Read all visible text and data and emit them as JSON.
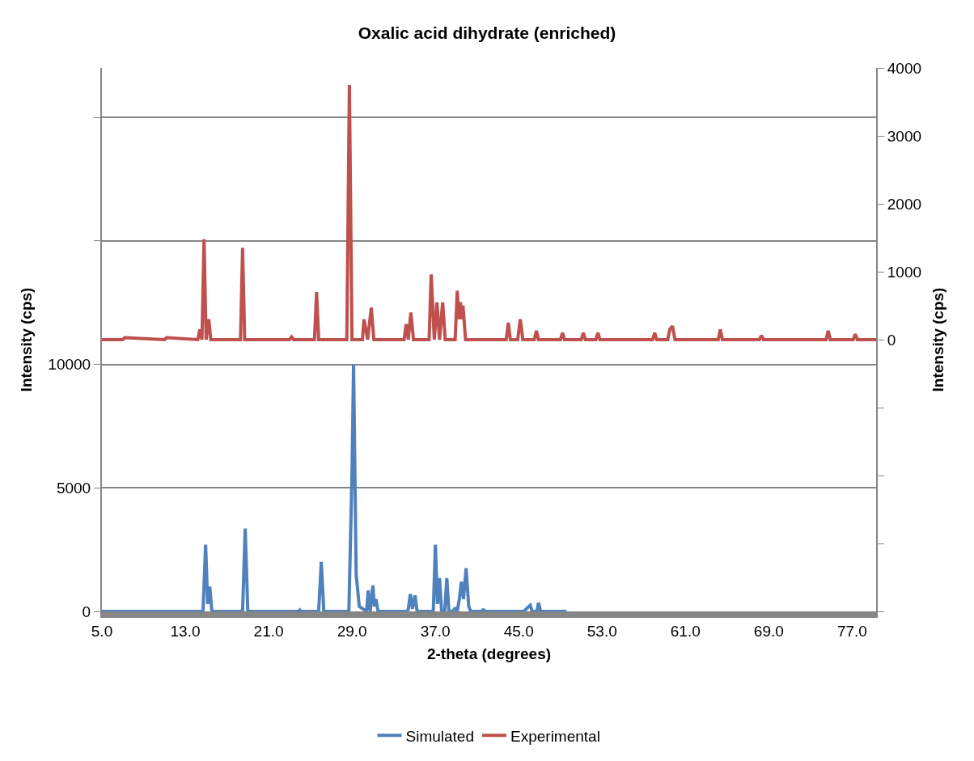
{
  "chart_data": {
    "type": "line",
    "title": "Oxalic acid dihydrate (enriched)",
    "xlabel": "2-theta (degrees)",
    "ylabel": "Intensity (cps)",
    "y2label": "Intensity (cps)",
    "xlim": [
      5.0,
      79.3
    ],
    "xticks": [
      {
        "value": 5,
        "label": "5.0"
      },
      {
        "value": 13,
        "label": "13.0"
      },
      {
        "value": 21,
        "label": "21.0"
      },
      {
        "value": 29,
        "label": "29.0"
      },
      {
        "value": 37,
        "label": "37.0"
      },
      {
        "value": 45,
        "label": "45.0"
      },
      {
        "value": 53,
        "label": "53.0"
      },
      {
        "value": 61,
        "label": "61.0"
      },
      {
        "value": 69,
        "label": "69.0"
      },
      {
        "value": 77,
        "label": "77.0"
      }
    ],
    "ylim": [
      0,
      22000
    ],
    "yticks": [
      0,
      5000,
      10000,
      {
        "value": 15000,
        "label": null
      },
      {
        "value": 20000,
        "label": null
      }
    ],
    "y2lim": [
      -4000,
      4000
    ],
    "y2ticks": [
      {
        "value": -4000,
        "label": null
      },
      {
        "value": -3000,
        "label": null
      },
      {
        "value": -2000,
        "label": null
      },
      {
        "value": -1000,
        "label": null
      },
      0,
      1000,
      2000,
      3000,
      4000
    ],
    "grid": "y",
    "legend": "bottom",
    "marker": "none",
    "line_style": "solid",
    "series": [
      {
        "name": "Simulated",
        "color": "#4f81bd",
        "x": [
          5.0,
          14.7,
          14.95,
          15.15,
          15.35,
          15.55,
          18.5,
          18.75,
          19.0,
          23.9,
          24.0,
          24.1,
          25.8,
          26.05,
          26.3,
          28.7,
          29.0,
          29.15,
          29.4,
          29.7,
          30.4,
          30.55,
          30.75,
          31.0,
          31.15,
          31.3,
          31.5,
          34.3,
          34.4,
          34.6,
          34.8,
          35.05,
          35.25,
          36.8,
          37.0,
          37.2,
          37.4,
          37.6,
          37.9,
          38.1,
          38.3,
          38.7,
          38.9,
          39.1,
          39.3,
          39.5,
          39.7,
          39.95,
          40.2,
          40.4,
          41.5,
          41.6,
          41.7,
          45.5,
          45.85,
          46.1,
          46.3,
          46.75,
          46.9,
          47.1,
          49.6
        ],
        "values": [
          0,
          0,
          2700,
          300,
          1000,
          0,
          0,
          3350,
          0,
          0,
          50,
          0,
          0,
          2000,
          0,
          0,
          5600,
          10000,
          1500,
          200,
          0,
          850,
          0,
          1050,
          200,
          500,
          0,
          0,
          100,
          700,
          100,
          650,
          0,
          0,
          2700,
          300,
          1350,
          0,
          0,
          1350,
          0,
          0,
          150,
          0,
          500,
          1200,
          500,
          1750,
          200,
          0,
          0,
          100,
          0,
          0,
          150,
          250,
          0,
          0,
          350,
          0,
          0
        ]
      },
      {
        "name": "Experimental",
        "color": "#c0504d",
        "axis": "y2",
        "x": [
          5.0,
          7.0,
          7.2,
          11.0,
          11.2,
          14.2,
          14.4,
          14.6,
          14.8,
          15.0,
          15.25,
          15.45,
          18.3,
          18.5,
          18.7,
          23.0,
          23.2,
          23.4,
          25.4,
          25.6,
          25.8,
          28.5,
          28.75,
          29.0,
          29.3,
          30.0,
          30.15,
          30.5,
          30.85,
          31.1,
          34.0,
          34.2,
          34.4,
          34.65,
          34.9,
          36.4,
          36.6,
          36.9,
          37.15,
          37.4,
          37.7,
          37.95,
          38.9,
          39.1,
          39.25,
          39.4,
          39.55,
          39.65,
          39.9,
          43.8,
          44.0,
          44.2,
          44.9,
          45.15,
          45.4,
          46.5,
          46.7,
          46.9,
          49.0,
          49.2,
          49.4,
          51.0,
          51.2,
          51.4,
          52.4,
          52.6,
          52.8,
          57.85,
          58.05,
          58.25,
          59.3,
          59.5,
          59.75,
          60.0,
          64.15,
          64.35,
          64.55,
          68.1,
          68.3,
          68.5,
          74.5,
          74.7,
          74.9,
          77.1,
          77.3,
          77.5,
          79.3
        ],
        "values": [
          0,
          0,
          30,
          0,
          30,
          0,
          150,
          0,
          1480,
          0,
          300,
          0,
          0,
          1350,
          0,
          0,
          40,
          0,
          0,
          700,
          0,
          0,
          3750,
          0,
          0,
          0,
          300,
          0,
          470,
          0,
          0,
          230,
          0,
          400,
          0,
          0,
          960,
          0,
          550,
          0,
          550,
          0,
          0,
          720,
          300,
          550,
          300,
          500,
          0,
          0,
          250,
          0,
          0,
          300,
          0,
          0,
          130,
          0,
          0,
          100,
          0,
          0,
          100,
          0,
          0,
          100,
          0,
          0,
          100,
          0,
          0,
          150,
          200,
          0,
          0,
          150,
          0,
          0,
          60,
          0,
          0,
          130,
          0,
          0,
          80,
          0,
          0
        ]
      }
    ]
  }
}
